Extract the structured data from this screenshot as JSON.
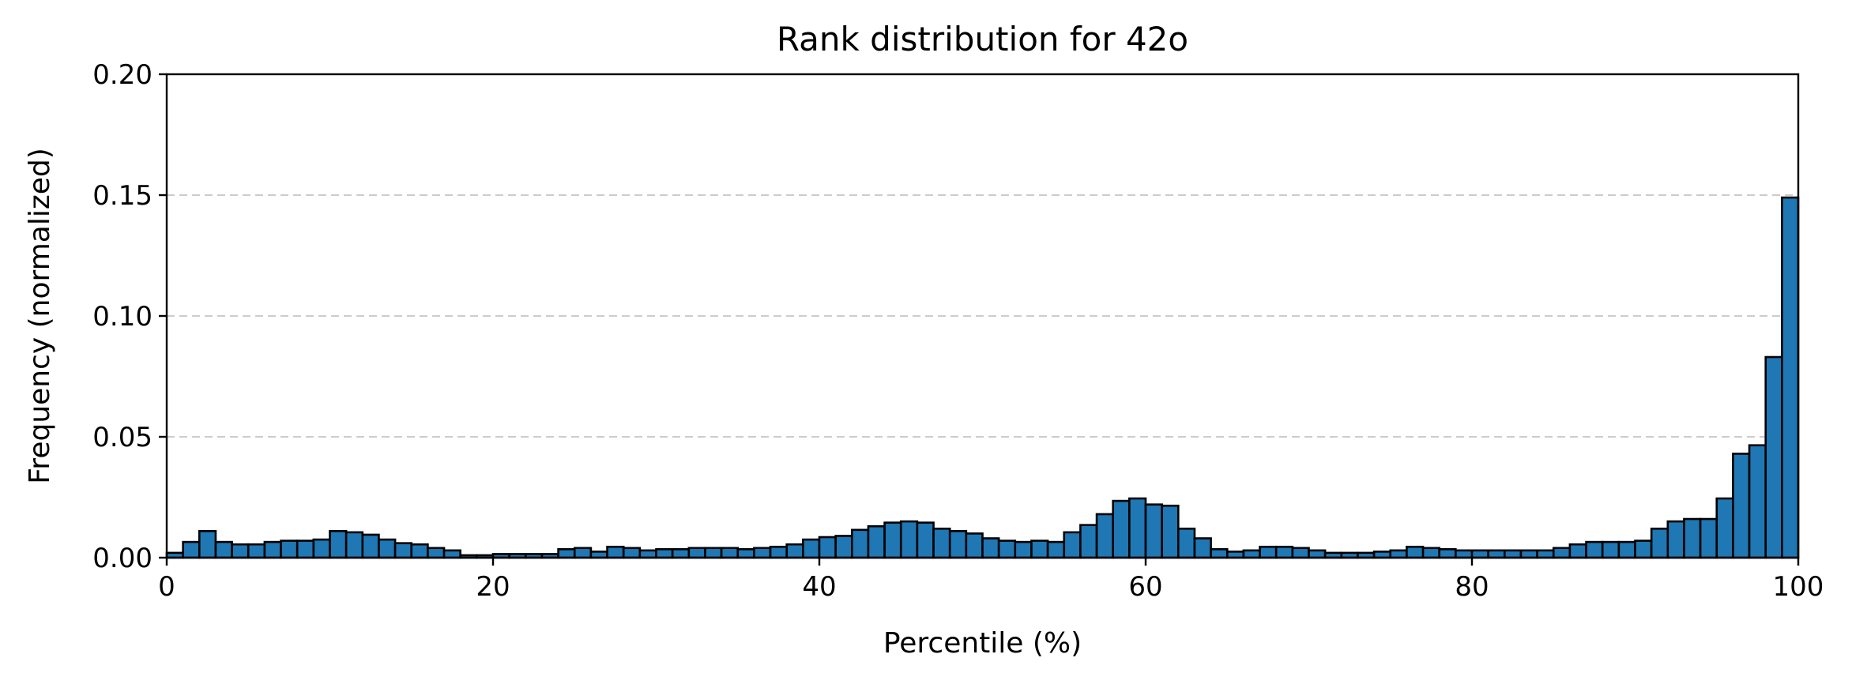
{
  "chart_data": {
    "type": "bar",
    "title": "Rank distribution for 42o",
    "xlabel": "Percentile (%)",
    "ylabel": "Frequency (normalized)",
    "xlim": [
      0,
      100
    ],
    "ylim": [
      0,
      0.2
    ],
    "xticks": [
      0,
      20,
      40,
      60,
      80,
      100
    ],
    "yticks": [
      0.0,
      0.05,
      0.1,
      0.15,
      0.2
    ],
    "ytick_labels": [
      "0.00",
      "0.05",
      "0.10",
      "0.15",
      "0.20"
    ],
    "grid": "horizontal dashed",
    "bar_color": "#1f77b4",
    "edge_color": "#000000",
    "bin_width": 1,
    "bin_starts": [
      0,
      1,
      2,
      3,
      4,
      5,
      6,
      7,
      8,
      9,
      10,
      11,
      12,
      13,
      14,
      15,
      16,
      17,
      18,
      19,
      20,
      21,
      22,
      23,
      24,
      25,
      26,
      27,
      28,
      29,
      30,
      31,
      32,
      33,
      34,
      35,
      36,
      37,
      38,
      39,
      40,
      41,
      42,
      43,
      44,
      45,
      46,
      47,
      48,
      49,
      50,
      51,
      52,
      53,
      54,
      55,
      56,
      57,
      58,
      59,
      60,
      61,
      62,
      63,
      64,
      65,
      66,
      67,
      68,
      69,
      70,
      71,
      72,
      73,
      74,
      75,
      76,
      77,
      78,
      79,
      80,
      81,
      82,
      83,
      84,
      85,
      86,
      87,
      88,
      89,
      90,
      91,
      92,
      93,
      94,
      95,
      96,
      97,
      98,
      99
    ],
    "values": [
      0.002,
      0.0065,
      0.011,
      0.0065,
      0.0055,
      0.0055,
      0.0065,
      0.007,
      0.007,
      0.0075,
      0.011,
      0.0105,
      0.0095,
      0.0075,
      0.006,
      0.0055,
      0.004,
      0.003,
      0.001,
      0.001,
      0.0015,
      0.0015,
      0.0015,
      0.0015,
      0.0035,
      0.004,
      0.0025,
      0.0045,
      0.004,
      0.003,
      0.0035,
      0.0035,
      0.004,
      0.004,
      0.004,
      0.0035,
      0.004,
      0.0045,
      0.0055,
      0.0075,
      0.0085,
      0.009,
      0.0115,
      0.013,
      0.0145,
      0.015,
      0.0145,
      0.012,
      0.011,
      0.01,
      0.008,
      0.007,
      0.0065,
      0.007,
      0.0065,
      0.0105,
      0.0135,
      0.018,
      0.0235,
      0.0245,
      0.022,
      0.0215,
      0.012,
      0.008,
      0.0035,
      0.0025,
      0.003,
      0.0045,
      0.0045,
      0.004,
      0.003,
      0.002,
      0.002,
      0.002,
      0.0025,
      0.003,
      0.0045,
      0.004,
      0.0035,
      0.003,
      0.003,
      0.003,
      0.003,
      0.003,
      0.003,
      0.004,
      0.0055,
      0.0065,
      0.0065,
      0.0065,
      0.007,
      0.012,
      0.015,
      0.016,
      0.016,
      0.0245,
      0.043,
      0.0465,
      0.083,
      0.149
    ]
  }
}
